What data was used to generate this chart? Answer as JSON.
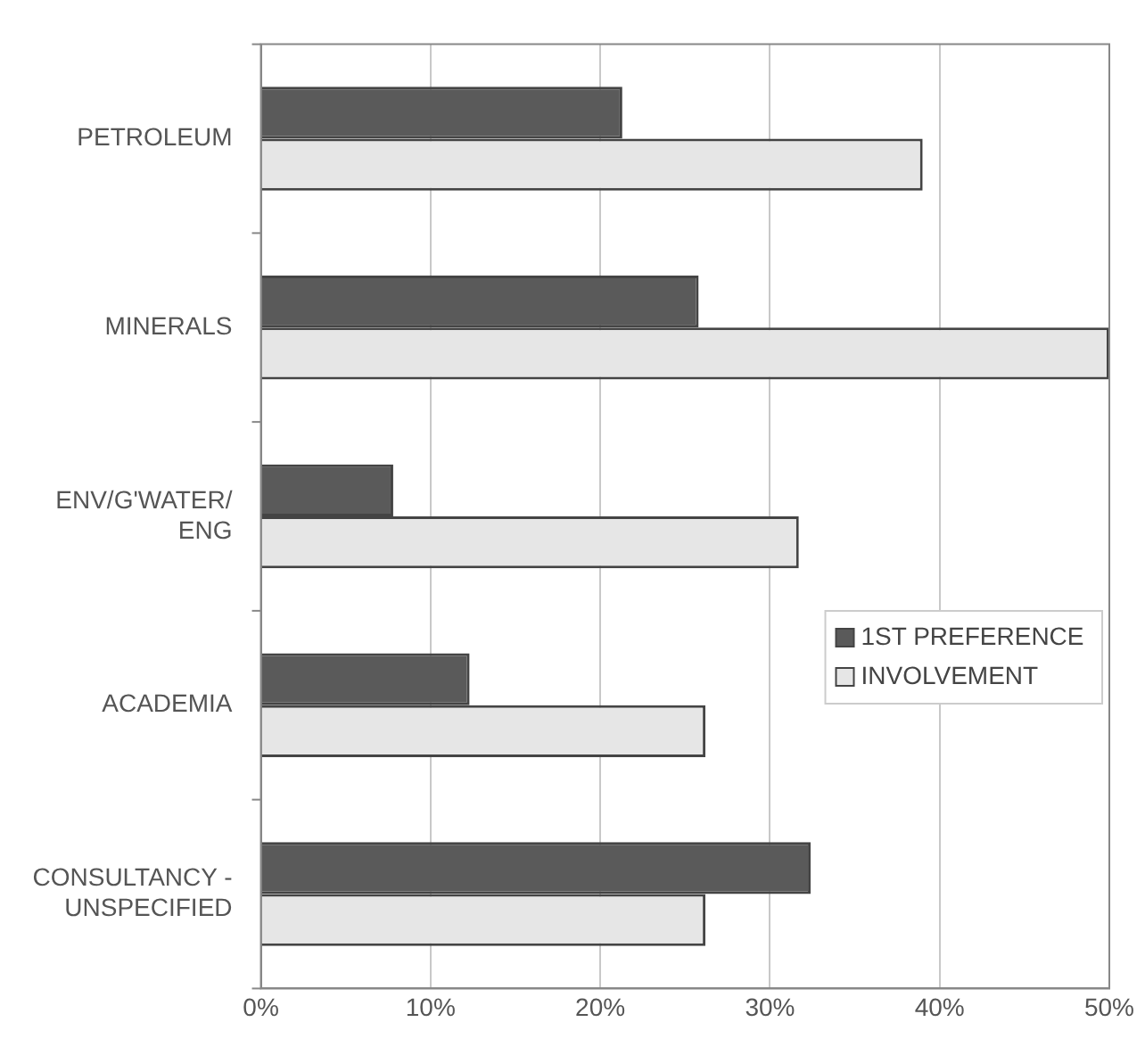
{
  "chart_data": {
    "type": "bar",
    "orientation": "horizontal",
    "categories": [
      "PETROLEUM",
      "MINERALS",
      "ENV/G'WATER/ ENG",
      "ACADEMIA",
      "CONSULTANCY - UNSPECIFIED"
    ],
    "series": [
      {
        "name": "1ST PREFERENCE",
        "color": "#5a5a5a",
        "values": [
          21.3,
          25.8,
          7.8,
          12.3,
          32.4
        ]
      },
      {
        "name": "INVOLVEMENT",
        "color": "#e6e6e6",
        "values": [
          39,
          50,
          31.7,
          26.2,
          26.2
        ]
      }
    ],
    "xlim": [
      0,
      50
    ],
    "xticks": [
      {
        "value": 0,
        "label": "0%"
      },
      {
        "value": 10,
        "label": "10%"
      },
      {
        "value": 20,
        "label": "20%"
      },
      {
        "value": 30,
        "label": "30%"
      },
      {
        "value": 40,
        "label": "40%"
      },
      {
        "value": 50,
        "label": "50%"
      }
    ],
    "grid": "x",
    "legend": "right"
  }
}
